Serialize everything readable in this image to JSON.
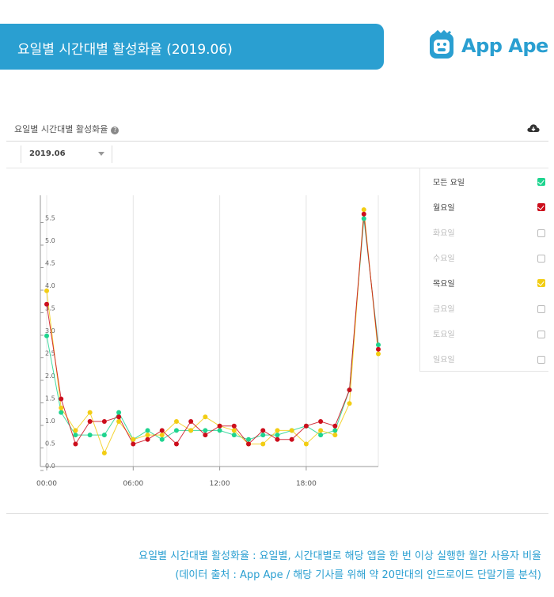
{
  "banner": {
    "title": "요일별 시간대별 활성화율 (2019.06)"
  },
  "logo": {
    "text": "App Ape",
    "color": "#2a9fd1"
  },
  "panel": {
    "title": "요일별 시간대별 활성화율",
    "help_icon": "question-circle-icon",
    "download_icon": "cloud-download-icon",
    "month_select": "2019.06"
  },
  "legend": [
    {
      "label": "모든 요일",
      "checked": true,
      "color": "#1ed48f"
    },
    {
      "label": "월요일",
      "checked": true,
      "color": "#cc0e1c"
    },
    {
      "label": "화요일",
      "checked": false,
      "color": "#bbbbbb"
    },
    {
      "label": "수요일",
      "checked": false,
      "color": "#bbbbbb"
    },
    {
      "label": "목요일",
      "checked": true,
      "color": "#f2cd13"
    },
    {
      "label": "금요일",
      "checked": false,
      "color": "#bbbbbb"
    },
    {
      "label": "토요일",
      "checked": false,
      "color": "#bbbbbb"
    },
    {
      "label": "일요일",
      "checked": false,
      "color": "#bbbbbb"
    }
  ],
  "chart_data": {
    "type": "line",
    "title": "요일별 시간대별 활성화율",
    "xlabel": "",
    "ylabel": "",
    "x": [
      0,
      1,
      2,
      3,
      4,
      5,
      6,
      7,
      8,
      9,
      10,
      11,
      12,
      13,
      14,
      15,
      16,
      17,
      18,
      19,
      20,
      21,
      22,
      23
    ],
    "x_tick_values": [
      0,
      6,
      12,
      18
    ],
    "x_tick_labels": [
      "00:00",
      "06:00",
      "12:00",
      "18:00"
    ],
    "y_ticks": [
      "0.0",
      "0.5",
      "1.0",
      "1.5",
      "2.0",
      "2.5",
      "3.0",
      "3.5",
      "4.0",
      "4.5",
      "5.0",
      "5.5"
    ],
    "ylim": [
      0,
      6
    ],
    "grid": true,
    "series": [
      {
        "name": "모든 요일",
        "color": "#1ed48f",
        "values": [
          2.9,
          1.2,
          0.7,
          0.7,
          0.7,
          1.2,
          0.6,
          0.8,
          0.6,
          0.8,
          0.8,
          0.8,
          0.8,
          0.7,
          0.6,
          0.7,
          0.7,
          0.8,
          0.9,
          0.7,
          0.8,
          1.7,
          5.5,
          2.7
        ]
      },
      {
        "name": "목요일",
        "color": "#f2cd13",
        "values": [
          3.9,
          1.3,
          0.8,
          1.2,
          0.3,
          1.0,
          0.6,
          0.7,
          0.7,
          1.0,
          0.8,
          1.1,
          0.9,
          0.8,
          0.5,
          0.5,
          0.8,
          0.8,
          0.5,
          0.8,
          0.7,
          1.4,
          5.7,
          2.5
        ]
      },
      {
        "name": "월요일",
        "color": "#cc0e1c",
        "values": [
          3.6,
          1.5,
          0.5,
          1.0,
          1.0,
          1.1,
          0.5,
          0.6,
          0.8,
          0.5,
          1.0,
          0.7,
          0.9,
          0.9,
          0.5,
          0.8,
          0.6,
          0.6,
          0.9,
          1.0,
          0.9,
          1.7,
          5.6,
          2.6
        ]
      }
    ]
  },
  "caption": {
    "line1": "요일별 시간대별 활성화율 : 요일별, 시간대별로 해당 앱을 한 번 이상 실행한 월간 사용자 비율",
    "line2": "(데이터 출처 : App Ape / 해당 기사를 위해 약 20만대의 안드로이드 단말기를 분석)"
  }
}
